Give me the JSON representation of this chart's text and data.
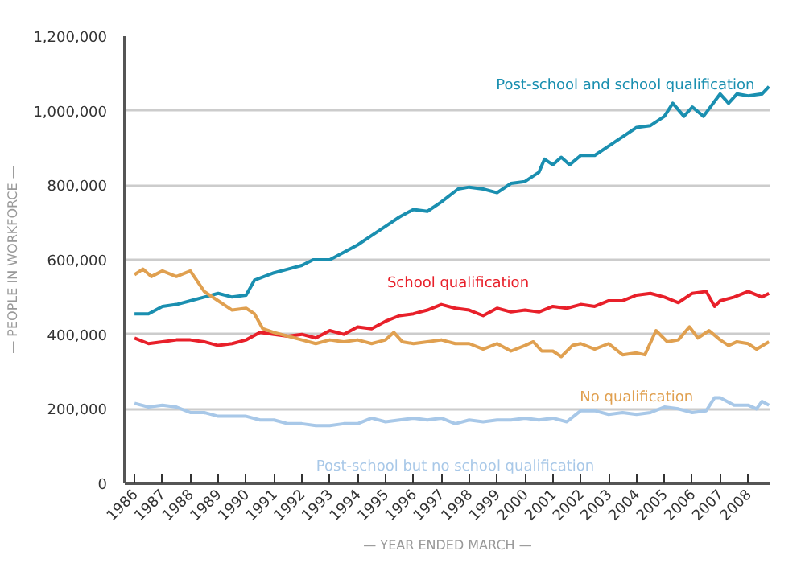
{
  "chart_data": {
    "type": "line",
    "xlabel": "— YEAR ENDED MARCH —",
    "ylabel": "— PEOPLE IN WORKFORCE —",
    "xlim": [
      1985.65,
      2008.8
    ],
    "xticks": [
      1986,
      1987,
      1988,
      1989,
      1990,
      1991,
      1992,
      1993,
      1994,
      1995,
      1996,
      1997,
      1998,
      1999,
      2000,
      2001,
      2002,
      2003,
      2004,
      2005,
      2006,
      2007,
      2008
    ],
    "ylim": [
      0,
      1200000
    ],
    "yticks": [
      {
        "value": 0,
        "label": "0"
      },
      {
        "value": 200000,
        "label": "200,000"
      },
      {
        "value": 400000,
        "label": "400,000"
      },
      {
        "value": 600000,
        "label": "600,000"
      },
      {
        "value": 800000,
        "label": "800,000"
      },
      {
        "value": 1000000,
        "label": "1,000,000"
      },
      {
        "value": 1200000,
        "label": "1,200,000"
      }
    ],
    "grid": "y",
    "legend": false,
    "marker": "none",
    "line_style": "solid",
    "series": [
      {
        "name": "Post-school and school qualification",
        "color": "#1a8fb0",
        "x": [
          1986,
          1986.5,
          1987,
          1987.5,
          1988,
          1988.5,
          1989,
          1989.5,
          1990,
          1990.3,
          1991,
          1991.5,
          1992,
          1992.4,
          1993,
          1993.5,
          1994,
          1994.5,
          1995,
          1995.5,
          1996,
          1996.5,
          1997,
          1997.6,
          1998,
          1998.5,
          1999,
          1999.5,
          2000,
          2000.5,
          2000.7,
          2001,
          2001.3,
          2001.6,
          2002,
          2002.5,
          2003,
          2003.5,
          2004,
          2004.5,
          2005,
          2005.3,
          2005.7,
          2006,
          2006.4,
          2007,
          2007.3,
          2007.6,
          2008,
          2008.5,
          2008.75
        ],
        "values": [
          455000,
          455000,
          475000,
          480000,
          490000,
          500000,
          510000,
          500000,
          505000,
          545000,
          565000,
          575000,
          585000,
          600000,
          600000,
          620000,
          640000,
          665000,
          690000,
          715000,
          735000,
          730000,
          755000,
          790000,
          795000,
          790000,
          780000,
          805000,
          810000,
          835000,
          870000,
          855000,
          875000,
          855000,
          880000,
          880000,
          905000,
          930000,
          955000,
          960000,
          985000,
          1020000,
          985000,
          1010000,
          985000,
          1045000,
          1020000,
          1045000,
          1040000,
          1045000,
          1065000
        ]
      },
      {
        "name": "School qualification",
        "color": "#e8202a",
        "x": [
          1986,
          1986.5,
          1987,
          1987.5,
          1988,
          1988.5,
          1989,
          1989.5,
          1990,
          1990.5,
          1991,
          1991.5,
          1992,
          1992.5,
          1993,
          1993.5,
          1994,
          1994.5,
          1995,
          1995.5,
          1996,
          1996.5,
          1997,
          1997.5,
          1998,
          1998.5,
          1999,
          1999.5,
          2000,
          2000.5,
          2001,
          2001.5,
          2002,
          2002.5,
          2003,
          2003.5,
          2004,
          2004.5,
          2005,
          2005.5,
          2006,
          2006.5,
          2006.8,
          2007,
          2007.5,
          2008,
          2008.5,
          2008.75
        ],
        "values": [
          390000,
          375000,
          380000,
          385000,
          385000,
          380000,
          370000,
          375000,
          385000,
          405000,
          400000,
          395000,
          400000,
          390000,
          410000,
          400000,
          420000,
          415000,
          435000,
          450000,
          455000,
          465000,
          480000,
          470000,
          465000,
          450000,
          470000,
          460000,
          465000,
          460000,
          475000,
          470000,
          480000,
          475000,
          490000,
          490000,
          505000,
          510000,
          500000,
          485000,
          510000,
          515000,
          475000,
          490000,
          500000,
          515000,
          500000,
          510000
        ]
      },
      {
        "name": "No qualification",
        "color": "#e0a050",
        "x": [
          1986,
          1986.3,
          1986.6,
          1987,
          1987.5,
          1988,
          1988.5,
          1989,
          1989.5,
          1990,
          1990.3,
          1990.6,
          1991,
          1991.5,
          1992,
          1992.5,
          1993,
          1993.5,
          1994,
          1994.5,
          1995,
          1995.3,
          1995.6,
          1996,
          1996.5,
          1997,
          1997.5,
          1998,
          1998.5,
          1999,
          1999.5,
          2000,
          2000.3,
          2000.6,
          2001,
          2001.3,
          2001.7,
          2002,
          2002.5,
          2003,
          2003.5,
          2004,
          2004.3,
          2004.7,
          2005.1,
          2005.5,
          2005.9,
          2006.2,
          2006.6,
          2007,
          2007.3,
          2007.6,
          2008,
          2008.3,
          2008.75
        ],
        "values": [
          560000,
          575000,
          555000,
          570000,
          555000,
          570000,
          515000,
          490000,
          465000,
          470000,
          455000,
          415000,
          405000,
          395000,
          385000,
          375000,
          385000,
          380000,
          385000,
          375000,
          385000,
          405000,
          380000,
          375000,
          380000,
          385000,
          375000,
          375000,
          360000,
          375000,
          355000,
          370000,
          380000,
          355000,
          355000,
          340000,
          370000,
          375000,
          360000,
          375000,
          345000,
          350000,
          345000,
          410000,
          380000,
          385000,
          420000,
          390000,
          410000,
          385000,
          370000,
          380000,
          375000,
          360000,
          380000
        ]
      },
      {
        "name": "Post-school but no school qualification",
        "color": "#a8c8e8",
        "x": [
          1986,
          1986.5,
          1987,
          1987.5,
          1988,
          1988.5,
          1989,
          1989.5,
          1990,
          1990.5,
          1991,
          1991.5,
          1992,
          1992.5,
          1993,
          1993.5,
          1994,
          1994.5,
          1995,
          1995.5,
          1996,
          1996.5,
          1997,
          1997.5,
          1998,
          1998.5,
          1999,
          1999.5,
          2000,
          2000.5,
          2001,
          2001.5,
          2002,
          2002.5,
          2003,
          2003.5,
          2004,
          2004.5,
          2005,
          2005.5,
          2006,
          2006.5,
          2006.8,
          2007,
          2007.5,
          2008,
          2008.3,
          2008.5,
          2008.75
        ],
        "values": [
          215000,
          205000,
          210000,
          205000,
          190000,
          190000,
          180000,
          180000,
          180000,
          170000,
          170000,
          160000,
          160000,
          155000,
          155000,
          160000,
          160000,
          175000,
          165000,
          170000,
          175000,
          170000,
          175000,
          160000,
          170000,
          165000,
          170000,
          170000,
          175000,
          170000,
          175000,
          165000,
          195000,
          195000,
          185000,
          190000,
          185000,
          190000,
          205000,
          200000,
          190000,
          195000,
          230000,
          230000,
          210000,
          210000,
          200000,
          220000,
          210000
        ]
      }
    ]
  }
}
